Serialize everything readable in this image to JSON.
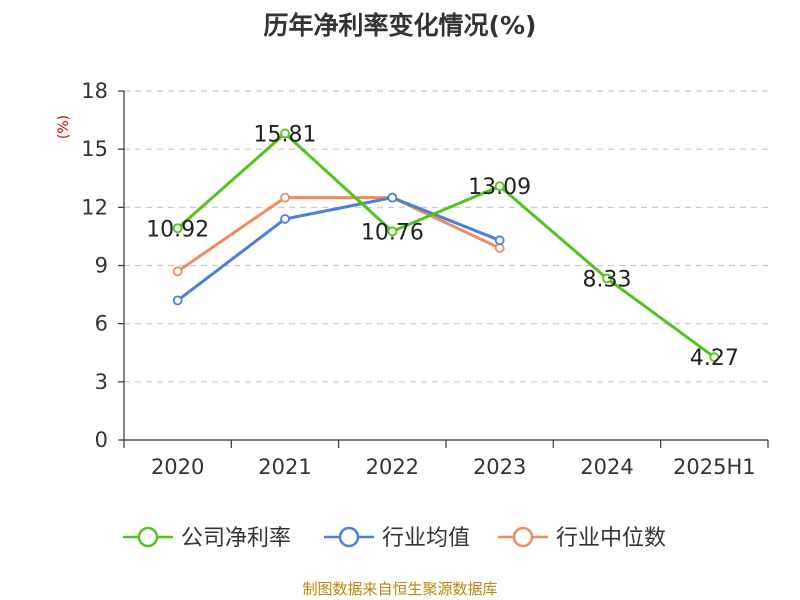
{
  "title": "历年净利率变化情况(%)",
  "source_note": "制图数据来自恒生聚源数据库",
  "chart_data": {
    "type": "line",
    "title": "历年净利率变化情况(%)",
    "ylabel": "(%)",
    "xlabel": "",
    "ylim": [
      0,
      18
    ],
    "yticks": [
      0,
      3,
      6,
      9,
      12,
      15,
      18
    ],
    "categories": [
      "2020",
      "2021",
      "2022",
      "2023",
      "2024",
      "2025H1"
    ],
    "grid": true,
    "legend_position": "bottom",
    "series": [
      {
        "name": "公司净利率",
        "color": "#52c41a",
        "values": [
          10.92,
          15.81,
          10.76,
          13.09,
          8.33,
          4.27
        ],
        "data_labels": [
          "10.92",
          "15.81",
          "10.76",
          "13.09",
          "8.33",
          "4.27"
        ]
      },
      {
        "name": "行业均值",
        "color": "#4a7fdb",
        "values": [
          7.2,
          11.4,
          12.5,
          10.3,
          null,
          null
        ]
      },
      {
        "name": "行业中位数",
        "color": "#f08c5a",
        "values": [
          8.7,
          12.5,
          12.5,
          9.9,
          null,
          null
        ]
      }
    ]
  }
}
